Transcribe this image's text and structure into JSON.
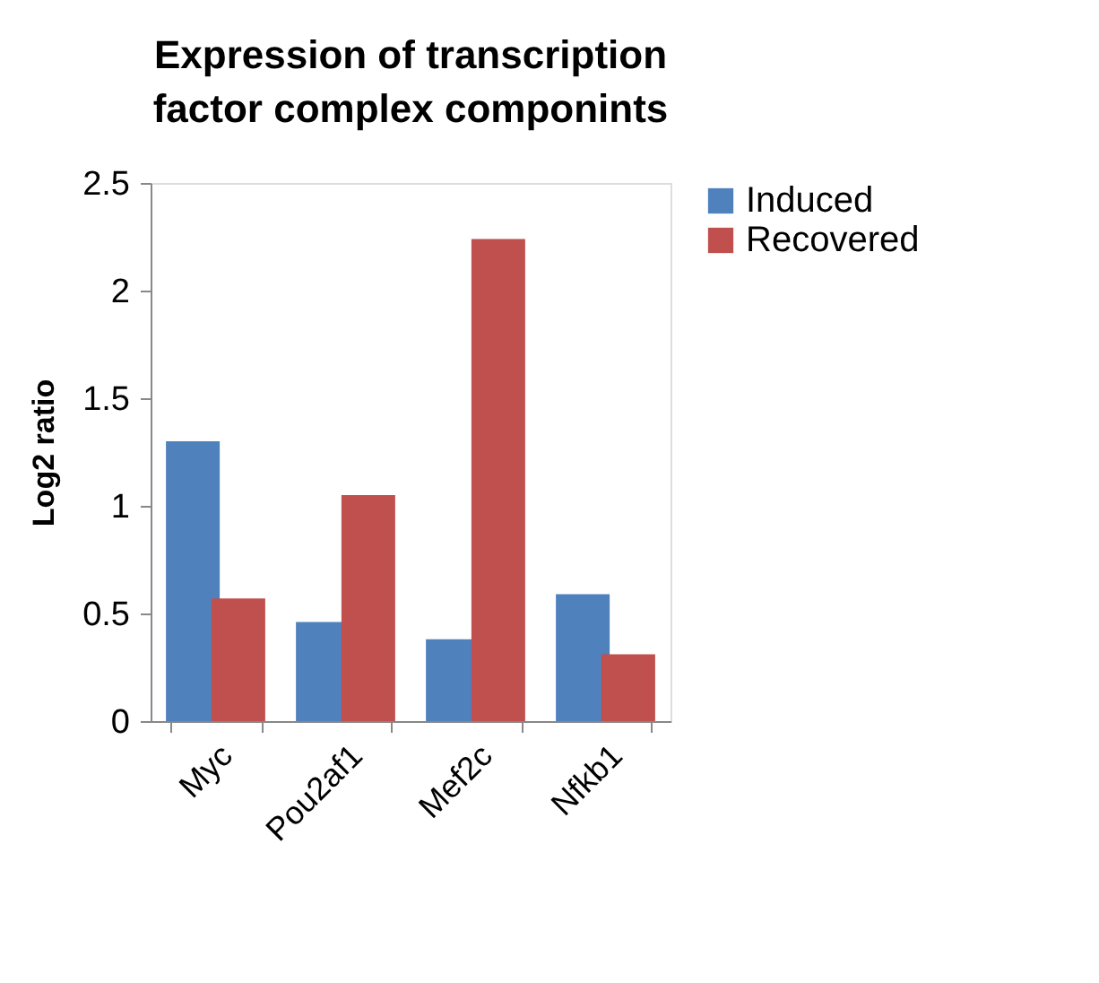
{
  "chart_data": {
    "type": "bar",
    "title": "Expression of transcription factor complex componints",
    "ylabel": "Log2 ratio",
    "categories": [
      "Myc",
      "Pou2af1",
      "Mef2c",
      "Nfkb1"
    ],
    "series": [
      {
        "name": "Induced",
        "color": "#4f81bd",
        "values": [
          1.3,
          0.46,
          0.38,
          0.59
        ]
      },
      {
        "name": "Recovered",
        "color": "#c0504d",
        "values": [
          0.57,
          1.05,
          2.24,
          0.31
        ]
      }
    ],
    "ylim": [
      0,
      2.5
    ],
    "yticks": [
      0,
      0.5,
      1,
      1.5,
      2,
      2.5
    ],
    "grid": false,
    "legend": "right"
  }
}
